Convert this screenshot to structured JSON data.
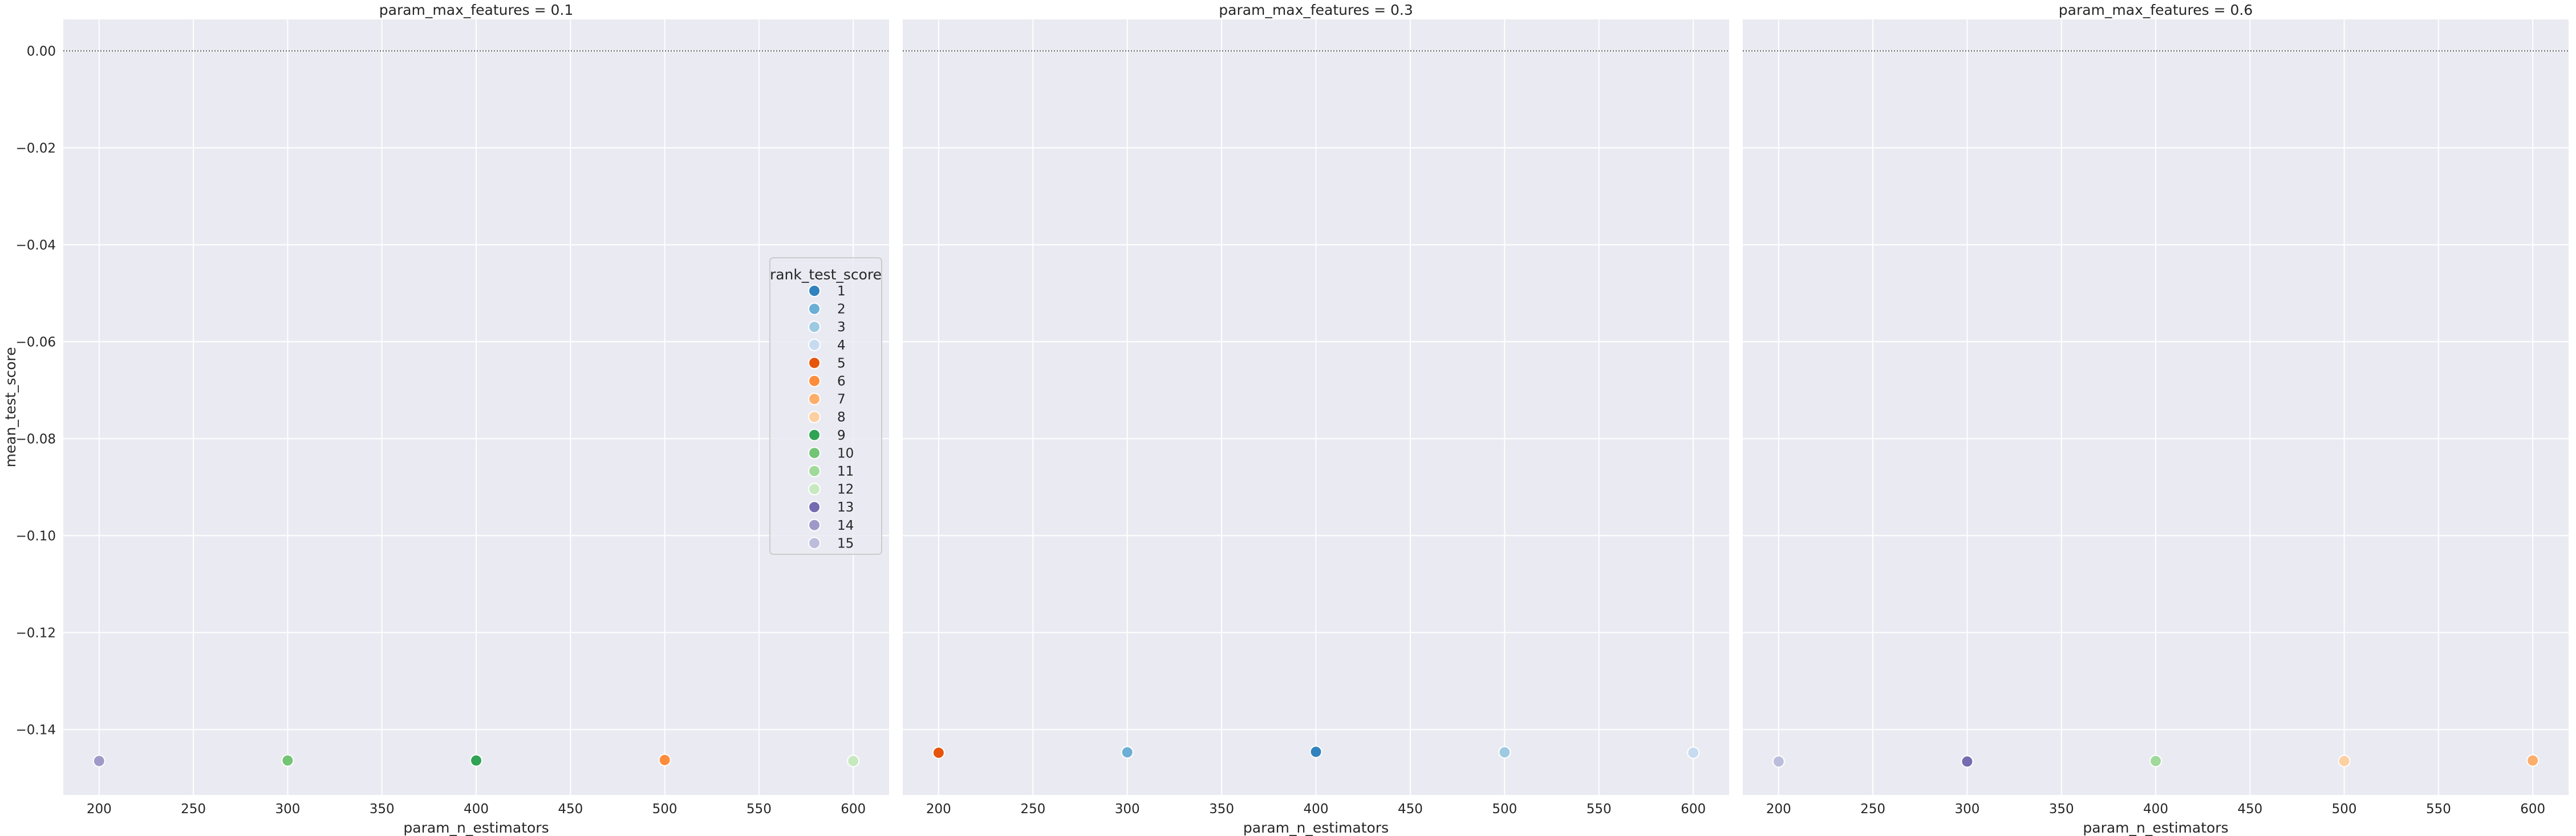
{
  "chart_data": {
    "type": "scatter",
    "facet_title_prefix": "param_max_features = ",
    "panels": [
      {
        "title": "param_max_features = 0.1",
        "facet_value": 0.1,
        "points": [
          {
            "x": 200,
            "y": -0.1465,
            "rank": 14
          },
          {
            "x": 300,
            "y": -0.1464,
            "rank": 10
          },
          {
            "x": 400,
            "y": -0.1464,
            "rank": 9
          },
          {
            "x": 500,
            "y": -0.1463,
            "rank": 6
          },
          {
            "x": 600,
            "y": -0.1465,
            "rank": 12
          }
        ]
      },
      {
        "title": "param_max_features = 0.3",
        "facet_value": 0.3,
        "points": [
          {
            "x": 200,
            "y": -0.1448,
            "rank": 5
          },
          {
            "x": 300,
            "y": -0.1447,
            "rank": 2
          },
          {
            "x": 400,
            "y": -0.1446,
            "rank": 1
          },
          {
            "x": 500,
            "y": -0.1447,
            "rank": 3
          },
          {
            "x": 600,
            "y": -0.1448,
            "rank": 4
          }
        ]
      },
      {
        "title": "param_max_features = 0.6",
        "facet_value": 0.6,
        "points": [
          {
            "x": 200,
            "y": -0.1466,
            "rank": 15
          },
          {
            "x": 300,
            "y": -0.1466,
            "rank": 13
          },
          {
            "x": 400,
            "y": -0.1465,
            "rank": 11
          },
          {
            "x": 500,
            "y": -0.1465,
            "rank": 8
          },
          {
            "x": 600,
            "y": -0.1464,
            "rank": 7
          }
        ]
      }
    ],
    "xlabel": "param_n_estimators",
    "ylabel": "mean_test_score",
    "xlim": [
      181,
      619
    ],
    "ylim": [
      -0.1535,
      0.0065
    ],
    "xticks": [
      200,
      250,
      300,
      350,
      400,
      450,
      500,
      550,
      600
    ],
    "xtick_labels": [
      "200",
      "250",
      "300",
      "350",
      "400",
      "450",
      "500",
      "550",
      "600"
    ],
    "yticks": [
      0.0,
      -0.02,
      -0.04,
      -0.06,
      -0.08,
      -0.1,
      -0.12,
      -0.14
    ],
    "ytick_labels": [
      "0.00",
      "−0.02",
      "−0.04",
      "−0.06",
      "−0.08",
      "−0.10",
      "−0.12",
      "−0.14"
    ],
    "reference_line": {
      "y": 0.0,
      "style": "dotted",
      "color": "#555555"
    },
    "grid": true,
    "background": "#eaeaf2",
    "legend": {
      "title": "rank_test_score",
      "placement": "right of first panel",
      "entries": [
        {
          "label": "1",
          "color": "#3182bd"
        },
        {
          "label": "2",
          "color": "#6baed6"
        },
        {
          "label": "3",
          "color": "#9ecae1"
        },
        {
          "label": "4",
          "color": "#c6dbef"
        },
        {
          "label": "5",
          "color": "#e6550d"
        },
        {
          "label": "6",
          "color": "#fd8d3c"
        },
        {
          "label": "7",
          "color": "#fdae6b"
        },
        {
          "label": "8",
          "color": "#fdd0a2"
        },
        {
          "label": "9",
          "color": "#31a354"
        },
        {
          "label": "10",
          "color": "#74c476"
        },
        {
          "label": "11",
          "color": "#a1d99b"
        },
        {
          "label": "12",
          "color": "#c7e9c0"
        },
        {
          "label": "13",
          "color": "#756bb1"
        },
        {
          "label": "14",
          "color": "#9e9ac8"
        },
        {
          "label": "15",
          "color": "#bcbddc"
        }
      ]
    }
  }
}
